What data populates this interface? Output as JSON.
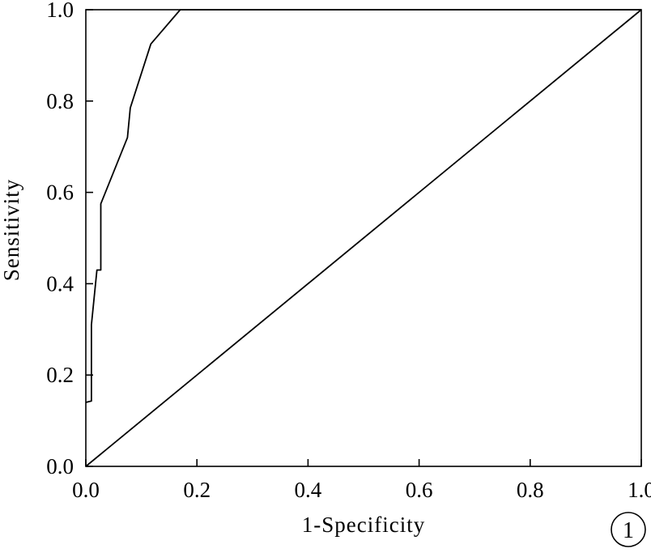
{
  "chart_data": {
    "type": "line",
    "title": "",
    "xlabel": "1-Specificity",
    "ylabel": "Sensitivity",
    "xlim": [
      0,
      1
    ],
    "ylim": [
      0,
      1
    ],
    "x_ticks": [
      "0.0",
      "0.2",
      "0.4",
      "0.6",
      "0.8",
      "1.0"
    ],
    "y_ticks": [
      "0.0",
      "0.2",
      "0.4",
      "0.6",
      "0.8",
      "1.0"
    ],
    "grid": false,
    "series": [
      {
        "points": [
          [
            0.0,
            0.14
          ],
          [
            0.01,
            0.143
          ],
          [
            0.01,
            0.31
          ],
          [
            0.02,
            0.43
          ],
          [
            0.027,
            0.43
          ],
          [
            0.027,
            0.575
          ],
          [
            0.075,
            0.72
          ],
          [
            0.08,
            0.785
          ],
          [
            0.117,
            0.925
          ],
          [
            0.17,
            1.0
          ],
          [
            1.0,
            1.0
          ]
        ]
      },
      {
        "points": [
          [
            0.0,
            0.0
          ],
          [
            1.0,
            1.0
          ]
        ]
      }
    ],
    "panel_label": "1"
  }
}
